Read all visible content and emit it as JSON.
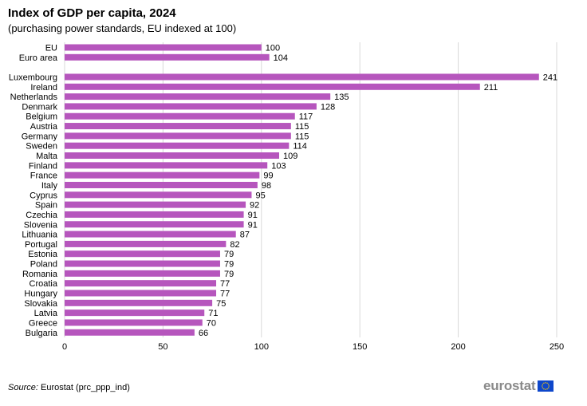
{
  "title": "Index of GDP per capita, 2024",
  "subtitle": "(purchasing power standards, EU indexed at 100)",
  "source": {
    "label": "Source:",
    "text": "Eurostat (prc_ppp_ind)"
  },
  "logo": {
    "text": "eurostat",
    "flag_icon": "eu-flag-icon"
  },
  "colors": {
    "bar": "#b656bd",
    "grid": "#d9d9d9",
    "flag_blue": "#0e47cb",
    "flag_star": "#ffcc00"
  },
  "chart_data": {
    "type": "bar",
    "orientation": "horizontal",
    "title": "Index of GDP per capita, 2024",
    "subtitle": "(purchasing power standards, EU indexed at 100)",
    "categories": [
      "EU",
      "Euro area",
      "",
      "Luxembourg",
      "Ireland",
      "Netherlands",
      "Denmark",
      "Belgium",
      "Austria",
      "Germany",
      "Sweden",
      "Malta",
      "Finland",
      "France",
      "Italy",
      "Cyprus",
      "Spain",
      "Czechia",
      "Slovenia",
      "Lithuania",
      "Portugal",
      "Estonia",
      "Poland",
      "Romania",
      "Croatia",
      "Hungary",
      "Slovakia",
      "Latvia",
      "Greece",
      "Bulgaria"
    ],
    "values": [
      100,
      104,
      null,
      241,
      211,
      135,
      128,
      117,
      115,
      115,
      114,
      109,
      103,
      99,
      98,
      95,
      92,
      91,
      91,
      87,
      82,
      79,
      79,
      79,
      77,
      77,
      75,
      71,
      70,
      66
    ],
    "xlim": [
      0,
      250
    ],
    "xticks": [
      0,
      50,
      100,
      150,
      200,
      250
    ],
    "grid": true,
    "legend": "none"
  }
}
